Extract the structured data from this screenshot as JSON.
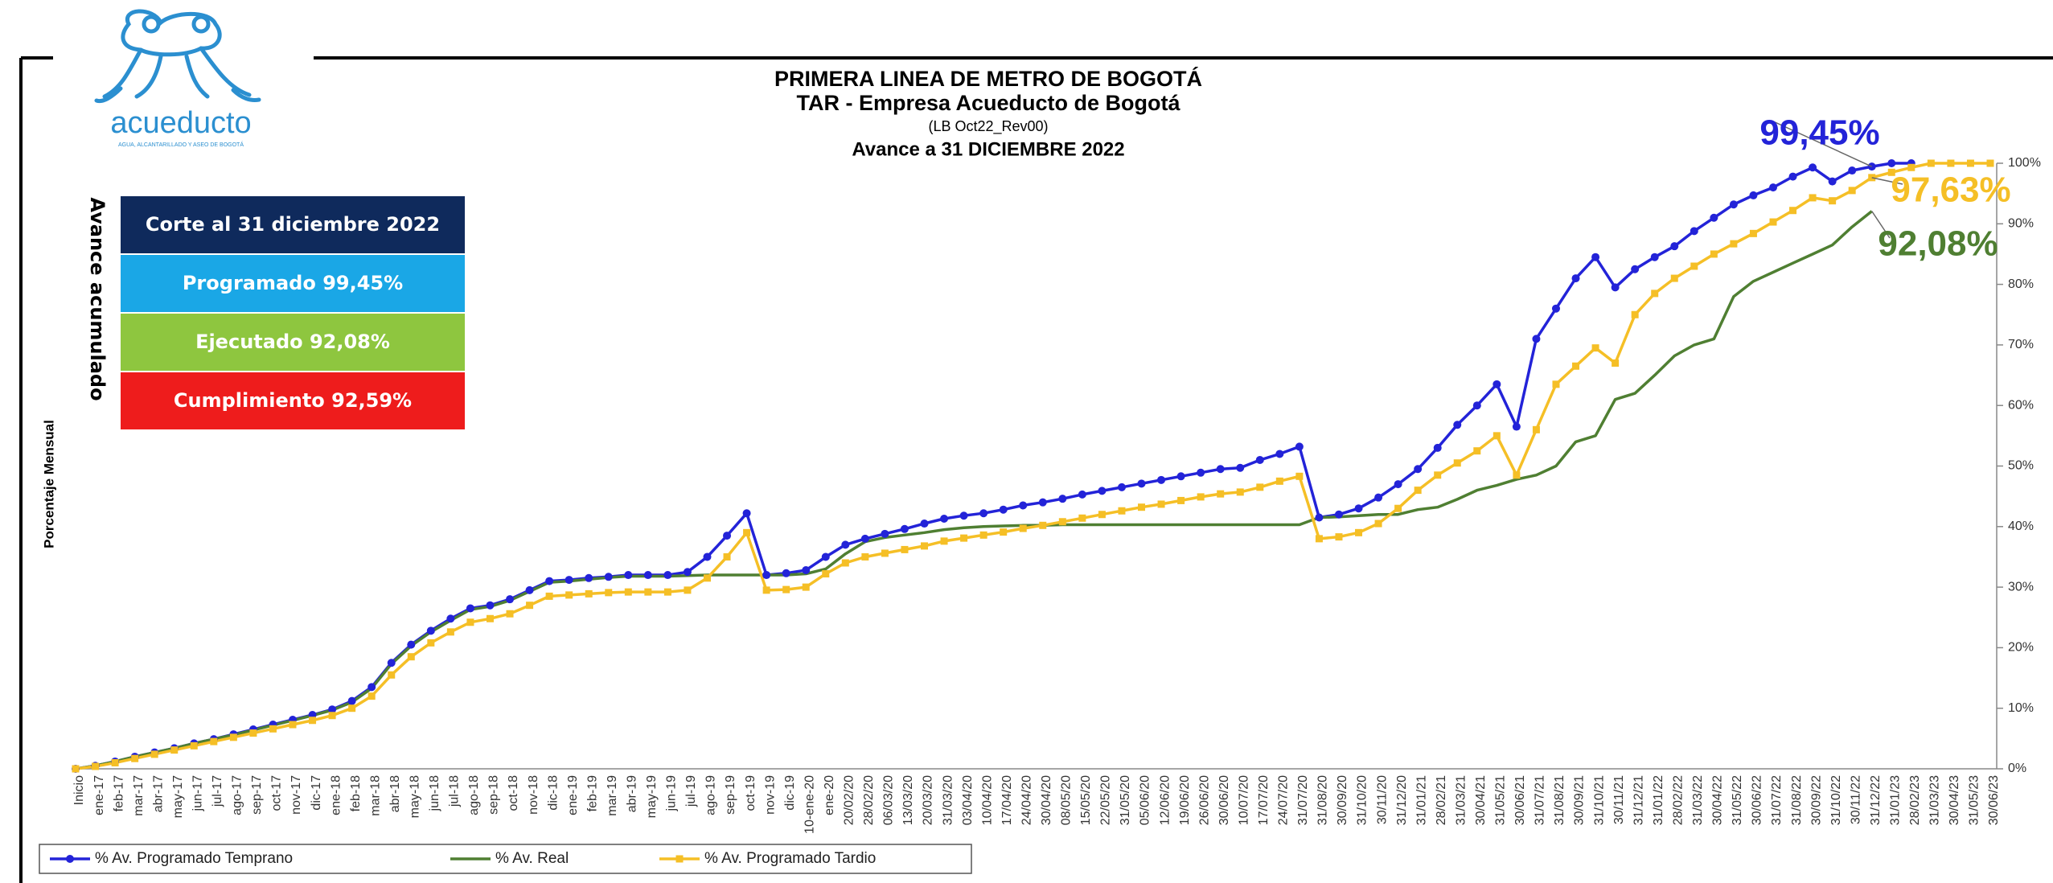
{
  "logo": {
    "name": "acueducto",
    "tagline": "AGUA, ALCANTARILLADO Y ASEO DE BOGOTÁ"
  },
  "chart_data": {
    "type": "line",
    "title": "PRIMERA LINEA DE METRO DE BOGOTÁ",
    "subtitle": [
      "TAR - Empresa Acueducto  de Bogotá",
      "(LB Oct22_Rev00)",
      "Avance a 31 DICIEMBRE 2022"
    ],
    "y_label": "Porcentaje Mensual",
    "side_label": "Avance acumulado",
    "info_box": [
      {
        "text": "Corte al 31 diciembre 2022",
        "color": "#0f2a5c"
      },
      {
        "text": "Programado 99,45%",
        "color": "#1aa7e6"
      },
      {
        "text": "Ejecutado 92,08%",
        "color": "#8ec63f"
      },
      {
        "text": "Cumplimiento 92,59%",
        "color": "#ee1c1c"
      }
    ],
    "annotations": [
      {
        "text": "99,45%",
        "color": "#2323d8",
        "series": 0,
        "index": 91
      },
      {
        "text": "97,63%",
        "color": "#f5bf26",
        "series": 2,
        "index": 91
      },
      {
        "text": "92,08%",
        "color": "#4f7f32",
        "series": 1,
        "index": 91
      }
    ],
    "categories": [
      "Inicio",
      "ene-17",
      "feb-17",
      "mar-17",
      "abr-17",
      "may-17",
      "jun-17",
      "jul-17",
      "ago-17",
      "sep-17",
      "oct-17",
      "nov-17",
      "dic-17",
      "ene-18",
      "feb-18",
      "mar-18",
      "abr-18",
      "may-18",
      "jun-18",
      "jul-18",
      "ago-18",
      "sep-18",
      "oct-18",
      "nov-18",
      "dic-18",
      "ene-19",
      "feb-19",
      "mar-19",
      "abr-19",
      "may-19",
      "jun-19",
      "jul-19",
      "ago-19",
      "sep-19",
      "oct-19",
      "nov-19",
      "dic-19",
      "10-ene-20",
      "ene-20",
      "20/02/20",
      "28/02/20",
      "06/03/20",
      "13/03/20",
      "20/03/20",
      "31/03/20",
      "03/04/20",
      "10/04/20",
      "17/04/20",
      "24/04/20",
      "30/04/20",
      "08/05/20",
      "15/05/20",
      "22/05/20",
      "31/05/20",
      "05/06/20",
      "12/06/20",
      "19/06/20",
      "26/06/20",
      "30/06/20",
      "10/07/20",
      "17/07/20",
      "24/07/20",
      "31/07/20",
      "31/08/20",
      "30/09/20",
      "31/10/20",
      "30/11/20",
      "31/12/20",
      "31/01/21",
      "28/02/21",
      "31/03/21",
      "30/04/21",
      "31/05/21",
      "30/06/21",
      "31/07/21",
      "31/08/21",
      "30/09/21",
      "31/10/21",
      "30/11/21",
      "31/12/21",
      "31/01/22",
      "28/02/22",
      "31/03/22",
      "30/04/22",
      "31/05/22",
      "30/06/22",
      "31/07/22",
      "31/08/22",
      "30/09/22",
      "31/10/22",
      "30/11/22",
      "31/12/22",
      "31/01/23",
      "28/02/23",
      "31/03/23",
      "30/04/23",
      "31/05/23",
      "30/06/23"
    ],
    "series": [
      {
        "name": "% Av. Programado Temprano",
        "color": "#2323d8",
        "marker": "circle",
        "values": [
          0,
          0.5,
          1.2,
          2,
          2.7,
          3.4,
          4.2,
          4.9,
          5.7,
          6.5,
          7.3,
          8.1,
          8.9,
          9.8,
          11.2,
          13.5,
          17.5,
          20.5,
          22.8,
          24.8,
          26.5,
          27,
          28,
          29.5,
          31,
          31.2,
          31.5,
          31.7,
          32,
          32,
          32,
          32.5,
          35,
          38.5,
          42.2,
          32,
          32.3,
          32.8,
          35,
          37,
          38,
          38.8,
          39.6,
          40.5,
          41.3,
          41.8,
          42.2,
          42.8,
          43.5,
          44,
          44.6,
          45.3,
          45.9,
          46.5,
          47.1,
          47.7,
          48.3,
          48.9,
          49.5,
          49.7,
          51,
          52,
          53.2,
          41.5,
          42,
          43,
          44.8,
          47,
          49.5,
          53,
          56.8,
          60,
          63.5,
          56.5,
          71,
          76,
          81,
          84.5,
          79.5,
          82.5,
          84.5,
          86.3,
          88.8,
          91,
          93.2,
          94.7,
          96,
          97.8,
          99.3,
          97,
          98.8,
          99.45,
          100,
          100,
          null,
          null,
          null,
          null
        ]
      },
      {
        "name": "% Av. Real",
        "color": "#4f7f32",
        "marker": "none",
        "values": [
          0,
          0.5,
          1.2,
          2,
          2.7,
          3.4,
          4.2,
          4.9,
          5.6,
          6.4,
          7.2,
          8,
          8.8,
          9.7,
          11,
          13.3,
          17.3,
          20.3,
          22.6,
          24.5,
          26.3,
          26.8,
          27.8,
          29.3,
          30.8,
          31,
          31.3,
          31.6,
          31.8,
          31.8,
          31.8,
          31.9,
          32,
          32,
          32,
          32,
          32,
          32.2,
          33,
          35.5,
          37.5,
          38.2,
          38.6,
          39,
          39.5,
          39.8,
          40,
          40.1,
          40.2,
          40.2,
          40.3,
          40.3,
          40.3,
          40.3,
          40.3,
          40.3,
          40.3,
          40.3,
          40.3,
          40.3,
          40.3,
          40.3,
          40.3,
          41.5,
          41.6,
          41.8,
          42,
          42,
          42.8,
          43.2,
          44.5,
          46,
          46.8,
          47.8,
          48.5,
          50,
          54,
          55,
          61,
          62,
          65,
          68.2,
          70,
          71,
          78,
          80.5,
          82,
          83.5,
          85,
          86.5,
          89.5,
          92.08,
          null,
          null,
          null,
          null,
          null,
          null
        ]
      },
      {
        "name": "% Av. Programado Tardio",
        "color": "#f5bf26",
        "marker": "square",
        "values": [
          0,
          0.4,
          1,
          1.7,
          2.4,
          3.1,
          3.8,
          4.5,
          5.2,
          5.9,
          6.6,
          7.3,
          8,
          8.8,
          10,
          12,
          15.5,
          18.5,
          20.8,
          22.6,
          24.2,
          24.8,
          25.6,
          27,
          28.5,
          28.7,
          28.9,
          29.1,
          29.2,
          29.2,
          29.2,
          29.5,
          31.5,
          35,
          39,
          29.5,
          29.6,
          30,
          32.2,
          34,
          35,
          35.6,
          36.2,
          36.8,
          37.6,
          38.1,
          38.6,
          39.1,
          39.7,
          40.2,
          40.8,
          41.4,
          42,
          42.6,
          43.2,
          43.7,
          44.3,
          44.9,
          45.4,
          45.7,
          46.5,
          47.5,
          48.3,
          38,
          38.3,
          39,
          40.5,
          43,
          46,
          48.5,
          50.5,
          52.5,
          55,
          48.5,
          56,
          63.5,
          66.5,
          69.5,
          67,
          75,
          78.5,
          81,
          83,
          85,
          86.7,
          88.4,
          90.3,
          92.2,
          94.3,
          93.8,
          95.5,
          97.63,
          98.5,
          99.3,
          100,
          100,
          100,
          100
        ]
      }
    ],
    "ylim": [
      0,
      100
    ],
    "yticks": [
      {
        "value": 0,
        "label": "0%"
      },
      {
        "value": 10,
        "label": "10%"
      },
      {
        "value": 20,
        "label": "20%"
      },
      {
        "value": 30,
        "label": "30%"
      },
      {
        "value": 40,
        "label": "40%"
      },
      {
        "value": 50,
        "label": "50%"
      },
      {
        "value": 60,
        "label": "60%"
      },
      {
        "value": 70,
        "label": "70%"
      },
      {
        "value": 80,
        "label": "80%"
      },
      {
        "value": 90,
        "label": "90%"
      },
      {
        "value": 100,
        "label": "100%"
      }
    ],
    "grid": false,
    "legend": "bottom"
  }
}
